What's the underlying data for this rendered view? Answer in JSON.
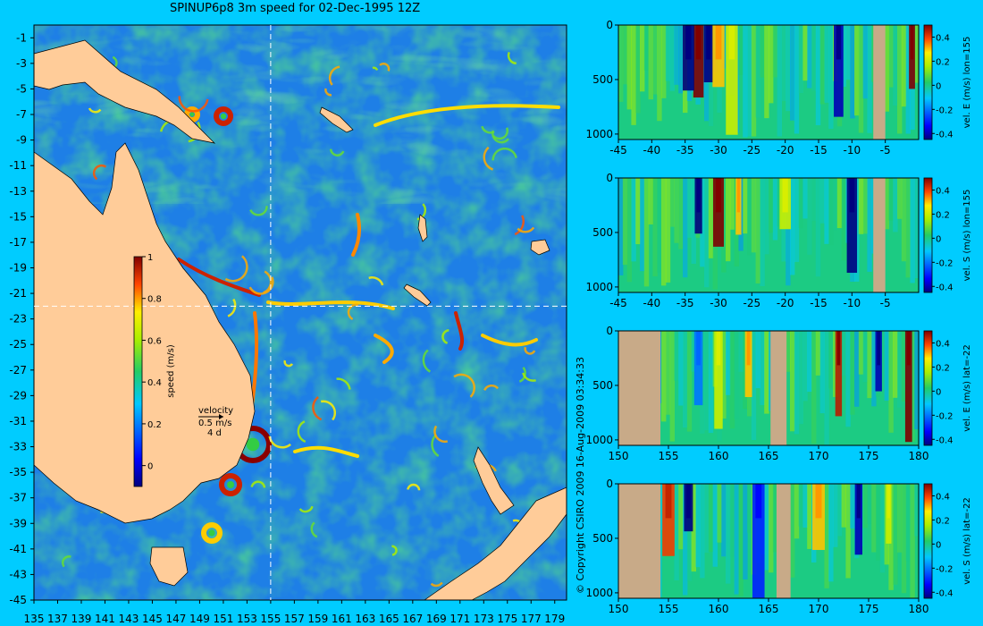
{
  "title": "SPINUP6p8 3m speed for 02-Dec-1995 12Z",
  "copyright": "© Copyright CSIRO 2009   16-Aug-2009 03:34:33",
  "colors": {
    "background": "#00ccff",
    "land_map": "#ffcc99",
    "land_section": "#c8aa88",
    "crosshair": "#ffffff"
  },
  "map": {
    "x_ticks": [
      "135",
      "137",
      "139",
      "141",
      "143",
      "145",
      "147",
      "149",
      "151",
      "153",
      "155",
      "157",
      "159",
      "161",
      "163",
      "165",
      "167",
      "169",
      "171",
      "173",
      "175",
      "177",
      "179"
    ],
    "y_ticks": [
      "-1",
      "-3",
      "-5",
      "-7",
      "-9",
      "-11",
      "-13",
      "-15",
      "-17",
      "-19",
      "-21",
      "-23",
      "-25",
      "-27",
      "-29",
      "-31",
      "-33",
      "-35",
      "-37",
      "-39",
      "-41",
      "-43",
      "-45"
    ],
    "xlim": [
      135,
      180
    ],
    "ylim": [
      -45,
      0
    ],
    "crosshair": {
      "lon": 155,
      "lat": -22
    },
    "colorbar": {
      "label": "speed (m/s)",
      "ticks": [
        "1",
        "0.8",
        "0.6",
        "0.4",
        "0.2",
        "0"
      ],
      "range": [
        -0.1,
        1
      ]
    },
    "velocity_key": {
      "title": "velocity",
      "speed": "0.5 m/s",
      "scale": "4 d"
    }
  },
  "chart_data": [
    {
      "type": "heatmap",
      "variable": "3m speed",
      "ylabel": "",
      "xlabel": "",
      "xlim": [
        135,
        180
      ],
      "ylim": [
        -45,
        0
      ],
      "units": "m/s",
      "crosshair": [
        155,
        -22
      ]
    },
    {
      "type": "heatmap",
      "ylabel": "",
      "xlabel": "",
      "x_ticks": [
        "-45",
        "-40",
        "-35",
        "-30",
        "-25",
        "-20",
        "-15",
        "-10",
        "-5"
      ],
      "y_ticks": [
        "0",
        "500",
        "1000"
      ],
      "xlim": [
        -45,
        0
      ],
      "ylim": [
        1050,
        0
      ],
      "colorbar_label": "vel. E (m/s) lon=155",
      "colorbar_ticks": [
        "0.4",
        "0.2",
        "0",
        "-0.2",
        "-0.4"
      ],
      "clim": [
        -0.45,
        0.5
      ]
    },
    {
      "type": "heatmap",
      "ylabel": "",
      "xlabel": "",
      "x_ticks": [
        "-45",
        "-40",
        "-35",
        "-30",
        "-25",
        "-20",
        "-15",
        "-10",
        "-5"
      ],
      "y_ticks": [
        "0",
        "500",
        "1000"
      ],
      "xlim": [
        -45,
        0
      ],
      "ylim": [
        1050,
        0
      ],
      "colorbar_label": "vel. S (m/s) lon=155",
      "colorbar_ticks": [
        "0.4",
        "0.2",
        "0",
        "-0.2",
        "-0.4"
      ],
      "clim": [
        -0.45,
        0.5
      ]
    },
    {
      "type": "heatmap",
      "ylabel": "",
      "xlabel": "",
      "x_ticks": [
        "150",
        "155",
        "160",
        "165",
        "170",
        "175",
        "180"
      ],
      "y_ticks": [
        "0",
        "500",
        "1000"
      ],
      "xlim": [
        150,
        180
      ],
      "ylim": [
        1050,
        0
      ],
      "colorbar_label": "vel. E (m/s) lat=-22",
      "colorbar_ticks": [
        "0.4",
        "0.2",
        "0",
        "-0.2",
        "-0.4"
      ],
      "clim": [
        -0.45,
        0.5
      ]
    },
    {
      "type": "heatmap",
      "ylabel": "",
      "xlabel": "",
      "x_ticks": [
        "150",
        "155",
        "160",
        "165",
        "170",
        "175",
        "180"
      ],
      "y_ticks": [
        "0",
        "500",
        "1000"
      ],
      "xlim": [
        150,
        180
      ],
      "ylim": [
        1050,
        0
      ],
      "colorbar_label": "vel. S (m/s) lat=-22",
      "colorbar_ticks": [
        "0.4",
        "0.2",
        "0",
        "-0.2",
        "-0.4"
      ],
      "clim": [
        -0.45,
        0.5
      ]
    }
  ]
}
